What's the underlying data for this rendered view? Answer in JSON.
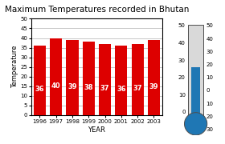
{
  "chart_data": {
    "type": "bar",
    "title": "Maximum Temperatures recorded in Bhutan",
    "categories": [
      "1996",
      "1997",
      "1998",
      "1999",
      "2000",
      "2001",
      "2002",
      "2003"
    ],
    "values": [
      36,
      40,
      39,
      38,
      37,
      36,
      37,
      39
    ],
    "color": "#dd0000",
    "x_label": "YEAR",
    "y_label": "Temperature",
    "ylim": [
      0,
      50
    ],
    "yticks": [
      0,
      5,
      10,
      15,
      20,
      25,
      30,
      35,
      40,
      45,
      50
    ],
    "grid": true,
    "data_labels": true,
    "annotations": [
      [
        "50",
        "40",
        "30",
        "20",
        "10",
        "0"
      ],
      [
        "50",
        "40",
        "30",
        "20",
        "10",
        "0",
        "10",
        "20",
        "30"
      ]
    ]
  }
}
